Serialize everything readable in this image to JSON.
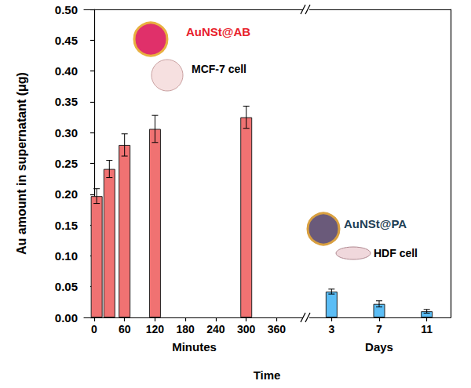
{
  "chart_data": {
    "type": "bar",
    "xlabel": "Time",
    "ylabel": "Au amount in supernatant (μg)",
    "ylim": [
      0,
      0.5
    ],
    "yticks": [
      {
        "value": 0,
        "label": "0.00"
      },
      {
        "value": 0.05,
        "label": "0.05"
      },
      {
        "value": 0.1,
        "label": "0.10"
      },
      {
        "value": 0.15,
        "label": "0.15"
      },
      {
        "value": 0.2,
        "label": "0.20"
      },
      {
        "value": 0.25,
        "label": "0.25"
      },
      {
        "value": 0.3,
        "label": "0.30"
      },
      {
        "value": 0.35,
        "label": "0.35"
      },
      {
        "value": 0.4,
        "label": "0.40"
      },
      {
        "value": 0.45,
        "label": "0.45"
      },
      {
        "value": 0.5,
        "label": "0.50"
      }
    ],
    "grid": false,
    "panels": [
      {
        "xlabel": "Minutes",
        "xlim": [
          -20,
          415
        ],
        "xticks": [
          0,
          60,
          120,
          180,
          240,
          300,
          360
        ],
        "x": [
          5,
          30,
          60,
          120,
          300
        ],
        "values": [
          0.197,
          0.241,
          0.28,
          0.306,
          0.325
        ],
        "errors": [
          0.012,
          0.014,
          0.018,
          0.022,
          0.018
        ],
        "color": "#f07272",
        "annotations": [
          {
            "text": "AuNSt@AB",
            "color": "#e8202a"
          },
          {
            "text": "MCF-7 cell",
            "color": "#000000"
          }
        ]
      },
      {
        "xlabel": "Days",
        "categories": [
          "3",
          "7",
          "11"
        ],
        "values": [
          0.042,
          0.022,
          0.01
        ],
        "errors": [
          0.004,
          0.005,
          0.003
        ],
        "color": "#5bbdf5",
        "tick_labels": "x",
        "annotations": [
          {
            "text": "AuNSt@PA",
            "color": "#1f3f55"
          },
          {
            "text": "HDF cell",
            "color": "#000000"
          }
        ]
      }
    ]
  }
}
